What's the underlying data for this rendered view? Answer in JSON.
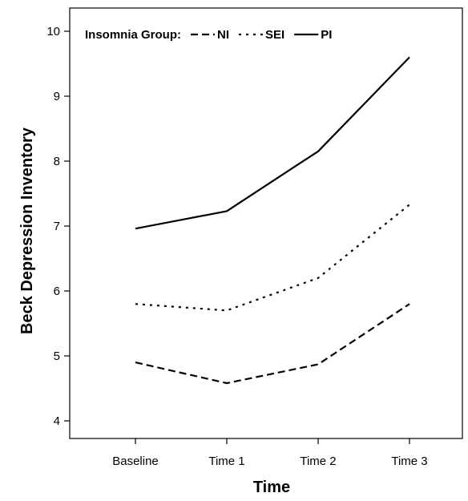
{
  "chart_data": {
    "type": "line",
    "categories": [
      "Baseline",
      "Time 1",
      "Time 2",
      "Time 3"
    ],
    "series": [
      {
        "name": "NI",
        "values": [
          4.9,
          4.58,
          4.87,
          5.8
        ],
        "line_style": "dashed"
      },
      {
        "name": "SEI",
        "values": [
          5.8,
          5.7,
          6.2,
          7.33
        ],
        "line_style": "dotted"
      },
      {
        "name": "PI",
        "values": [
          6.96,
          7.23,
          8.15,
          9.6
        ],
        "line_style": "solid"
      }
    ],
    "title": "",
    "xlabel": "Time",
    "ylabel": "Beck Depression Inventory",
    "ylim": [
      3.5,
      10.3
    ],
    "yticks": [
      4,
      5,
      6,
      7,
      8,
      9,
      10
    ],
    "legend": {
      "title": "Insomnia Group:",
      "position": "top-left",
      "orientation": "horizontal"
    },
    "grid": false,
    "line_color": "#000000"
  }
}
